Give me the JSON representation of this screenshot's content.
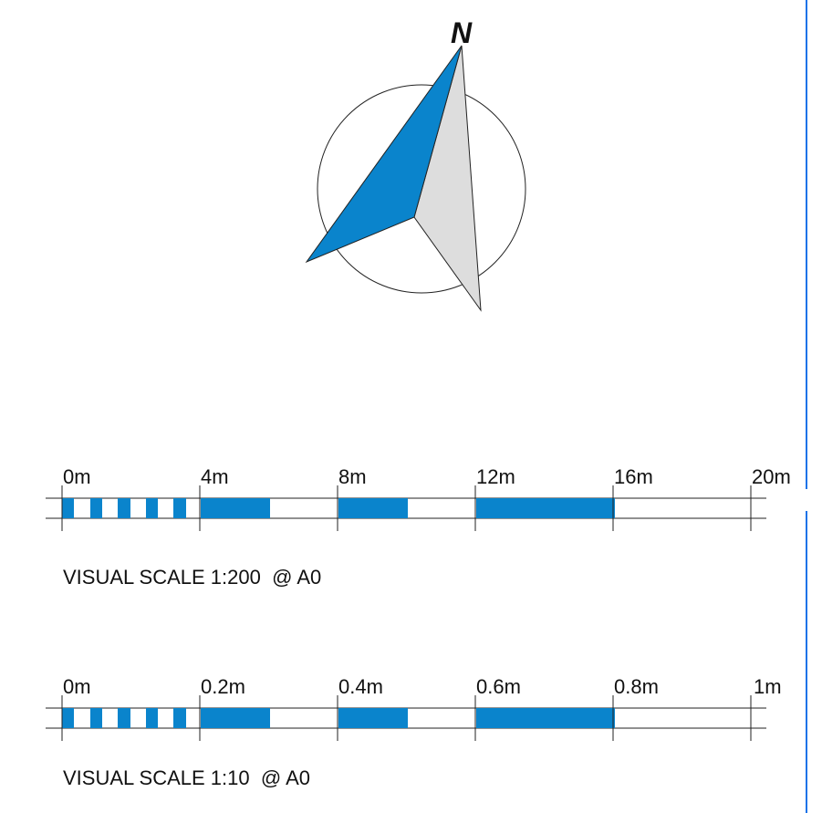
{
  "north_arrow": {
    "letter": "N",
    "colors": {
      "left": "#0a84cc",
      "right": "#dddddd",
      "outline": "#222222"
    }
  },
  "scale_bars": [
    {
      "labels": [
        "0m",
        "4m",
        "8m",
        "12m",
        "16m",
        "20m"
      ],
      "caption": "VISUAL SCALE 1:200  @ A0"
    },
    {
      "labels": [
        "0m",
        "0.2m",
        "0.4m",
        "0.6m",
        "0.8m",
        "1m"
      ],
      "caption": "VISUAL SCALE 1:10  @ A0"
    }
  ],
  "colors": {
    "fill": "#0a84cc",
    "line": "#222222",
    "frame": "#1a73e8"
  }
}
